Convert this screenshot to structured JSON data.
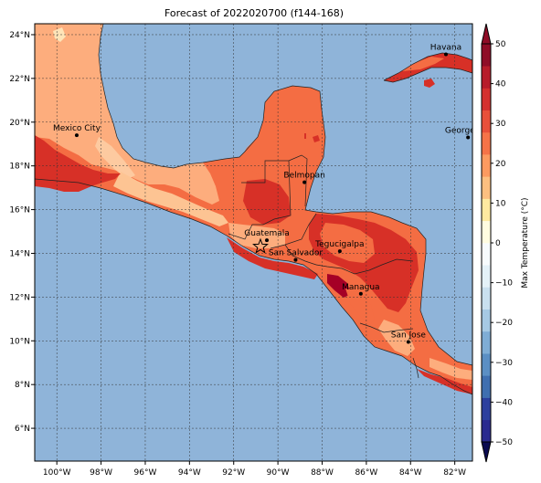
{
  "title": "Forecast of 2022020700 (f144-168)",
  "map": {
    "lon_range": [
      -101,
      -81.2
    ],
    "lat_range": [
      4.5,
      24.5
    ],
    "x_ticks": [
      {
        "value": -100,
        "label": "100°W"
      },
      {
        "value": -98,
        "label": "98°W"
      },
      {
        "value": -96,
        "label": "96°W"
      },
      {
        "value": -94,
        "label": "94°W"
      },
      {
        "value": -92,
        "label": "92°W"
      },
      {
        "value": -90,
        "label": "90°W"
      },
      {
        "value": -88,
        "label": "88°W"
      },
      {
        "value": -86,
        "label": "86°W"
      },
      {
        "value": -84,
        "label": "84°W"
      },
      {
        "value": -82,
        "label": "82°W"
      }
    ],
    "y_ticks": [
      {
        "value": 6,
        "label": "6°N"
      },
      {
        "value": 8,
        "label": "8°N"
      },
      {
        "value": 10,
        "label": "10°N"
      },
      {
        "value": 12,
        "label": "12°N"
      },
      {
        "value": 14,
        "label": "14°N"
      },
      {
        "value": 16,
        "label": "16°N"
      },
      {
        "value": 18,
        "label": "18°N"
      },
      {
        "value": 20,
        "label": "20°N"
      },
      {
        "value": 22,
        "label": "22°N"
      },
      {
        "value": 24,
        "label": "24°N"
      }
    ],
    "grid": true,
    "ocean_color": "#8fb4d9"
  },
  "cities": [
    {
      "name": "Havana",
      "lon": -82.4,
      "lat": 23.1
    },
    {
      "name": "Mexico City",
      "lon": -99.1,
      "lat": 19.4
    },
    {
      "name": "George Tov",
      "lon": -81.4,
      "lat": 19.3
    },
    {
      "name": "Belmopan",
      "lon": -88.8,
      "lat": 17.25
    },
    {
      "name": "Guatemala",
      "lon": -90.5,
      "lat": 14.6
    },
    {
      "name": "San Salvador",
      "lon": -89.2,
      "lat": 13.7
    },
    {
      "name": "Tegucigalpa",
      "lon": -87.2,
      "lat": 14.1
    },
    {
      "name": "Managua",
      "lon": -86.25,
      "lat": 12.15
    },
    {
      "name": "San Jose",
      "lon": -84.1,
      "lat": 9.95
    }
  ],
  "colorbar": {
    "label": "Max Temperature (°C)",
    "ticks": [
      "50",
      "40",
      "30",
      "20",
      "10",
      "0",
      "−10",
      "−20",
      "−30",
      "−40",
      "−50"
    ],
    "colors": [
      "#67001f",
      "#b2182b",
      "#d6604d",
      "#f4a582",
      "#fddbc7",
      "#ffffff",
      "#d1e5f0",
      "#92c5de",
      "#4393c3",
      "#2166ac",
      "#053061"
    ],
    "segments": [
      "#2a2a8f",
      "#2c3f9e",
      "#3f6fb0",
      "#5b8fc4",
      "#7fadd5",
      "#a6c9e4",
      "#c9e0ef",
      "#e4f1f8",
      "#f7fbfd",
      "#fffce0",
      "#fee9a0",
      "#fdbf80",
      "#fc9a60",
      "#f57348",
      "#e8503a",
      "#d4302e",
      "#b71c2a",
      "#8f0d27"
    ]
  }
}
